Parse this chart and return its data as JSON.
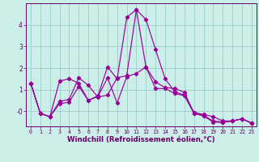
{
  "xlabel": "Windchill (Refroidissement éolien,°C)",
  "background_color": "#cceee8",
  "grid_color": "#99cccc",
  "line_color": "#990099",
  "tick_color": "#660066",
  "ylim": [
    -0.7,
    5.0
  ],
  "xlim": [
    -0.5,
    23.5
  ],
  "x_ticks": [
    0,
    1,
    2,
    3,
    4,
    5,
    6,
    7,
    8,
    9,
    10,
    11,
    12,
    13,
    14,
    15,
    16,
    17,
    18,
    19,
    20,
    21,
    22,
    23
  ],
  "y_ticks": [
    0,
    1,
    2,
    3,
    4
  ],
  "y_labels": [
    "-0",
    "1",
    "2",
    "3",
    "4"
  ],
  "xtick_fontsize": 4.8,
  "ytick_fontsize": 5.5,
  "xlabel_fontsize": 6.2,
  "series": [
    [
      1.3,
      -0.1,
      -0.25,
      0.45,
      0.55,
      1.55,
      1.2,
      0.65,
      0.75,
      1.55,
      1.65,
      4.7,
      4.25,
      2.85,
      1.5,
      0.9,
      0.75,
      -0.05,
      -0.15,
      -0.25,
      -0.45,
      -0.45,
      -0.35,
      -0.55
    ],
    [
      1.3,
      -0.1,
      -0.25,
      1.4,
      1.5,
      1.3,
      0.5,
      0.72,
      2.05,
      1.5,
      4.35,
      4.7,
      2.05,
      1.35,
      1.1,
      1.05,
      0.88,
      -0.1,
      -0.2,
      -0.45,
      -0.5,
      -0.45,
      -0.35,
      -0.55
    ],
    [
      1.3,
      -0.1,
      -0.25,
      0.35,
      0.42,
      1.15,
      0.5,
      0.68,
      1.55,
      0.38,
      1.6,
      1.75,
      2.05,
      1.05,
      1.05,
      0.82,
      0.72,
      -0.1,
      -0.22,
      -0.5,
      -0.52,
      -0.45,
      -0.35,
      -0.55
    ]
  ]
}
